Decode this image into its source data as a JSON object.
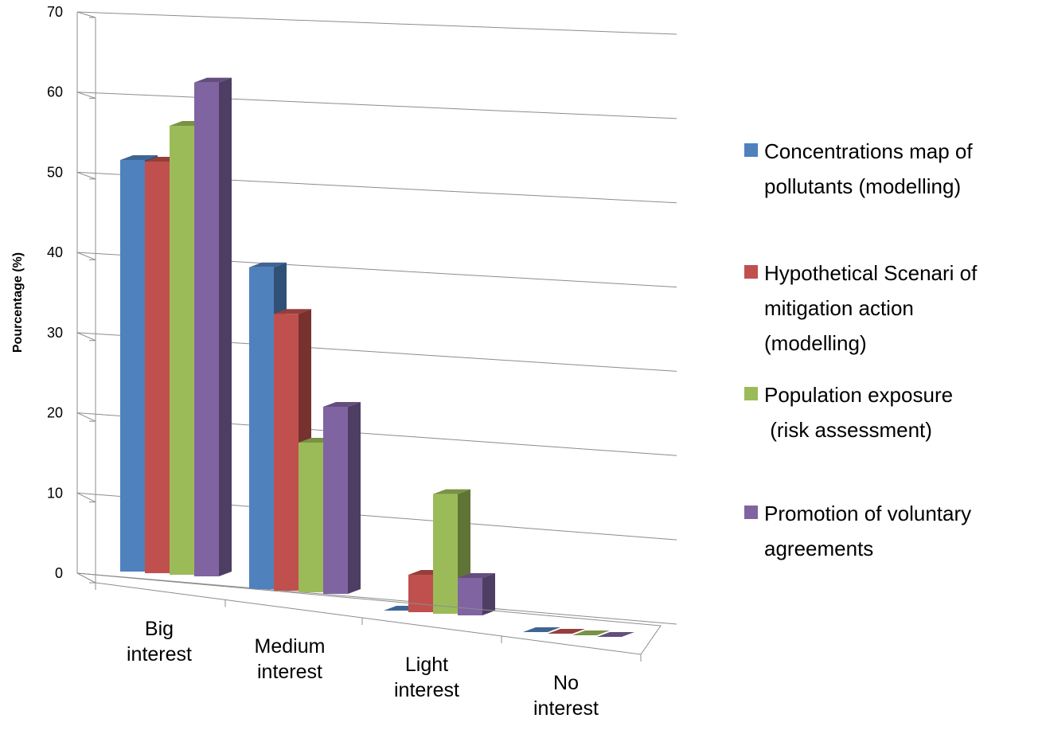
{
  "chart_data": {
    "type": "bar",
    "title": "",
    "xlabel": "",
    "ylabel": "Pourcentage (%)",
    "ylim": [
      0,
      70
    ],
    "yticks": [
      "0",
      "10",
      "20",
      "30",
      "40",
      "50",
      "60",
      "70"
    ],
    "grid": true,
    "legend_position": "right",
    "categories": [
      [
        "Big",
        "interest"
      ],
      [
        "Medium",
        "interest"
      ],
      [
        "Light",
        "interest"
      ],
      [
        "No",
        "interest"
      ]
    ],
    "series": [
      {
        "name": [
          "Concentrations map of",
          "pollutants (modelling)"
        ],
        "color": "#4f81bd",
        "values": [
          55,
          43,
          0,
          0
        ]
      },
      {
        "name": [
          "Hypothetical Scenari of",
          "mitigation action",
          "(modelling)"
        ],
        "color": "#c0504d",
        "values": [
          55,
          37,
          5,
          0
        ]
      },
      {
        "name": [
          "Population exposure",
          " (risk assessment)"
        ],
        "color": "#9bbb59",
        "values": [
          60,
          20,
          16,
          0
        ]
      },
      {
        "name": [
          "Promotion of voluntary",
          "agreements"
        ],
        "color": "#8064a2",
        "values": [
          66,
          25,
          5,
          0
        ]
      }
    ]
  }
}
